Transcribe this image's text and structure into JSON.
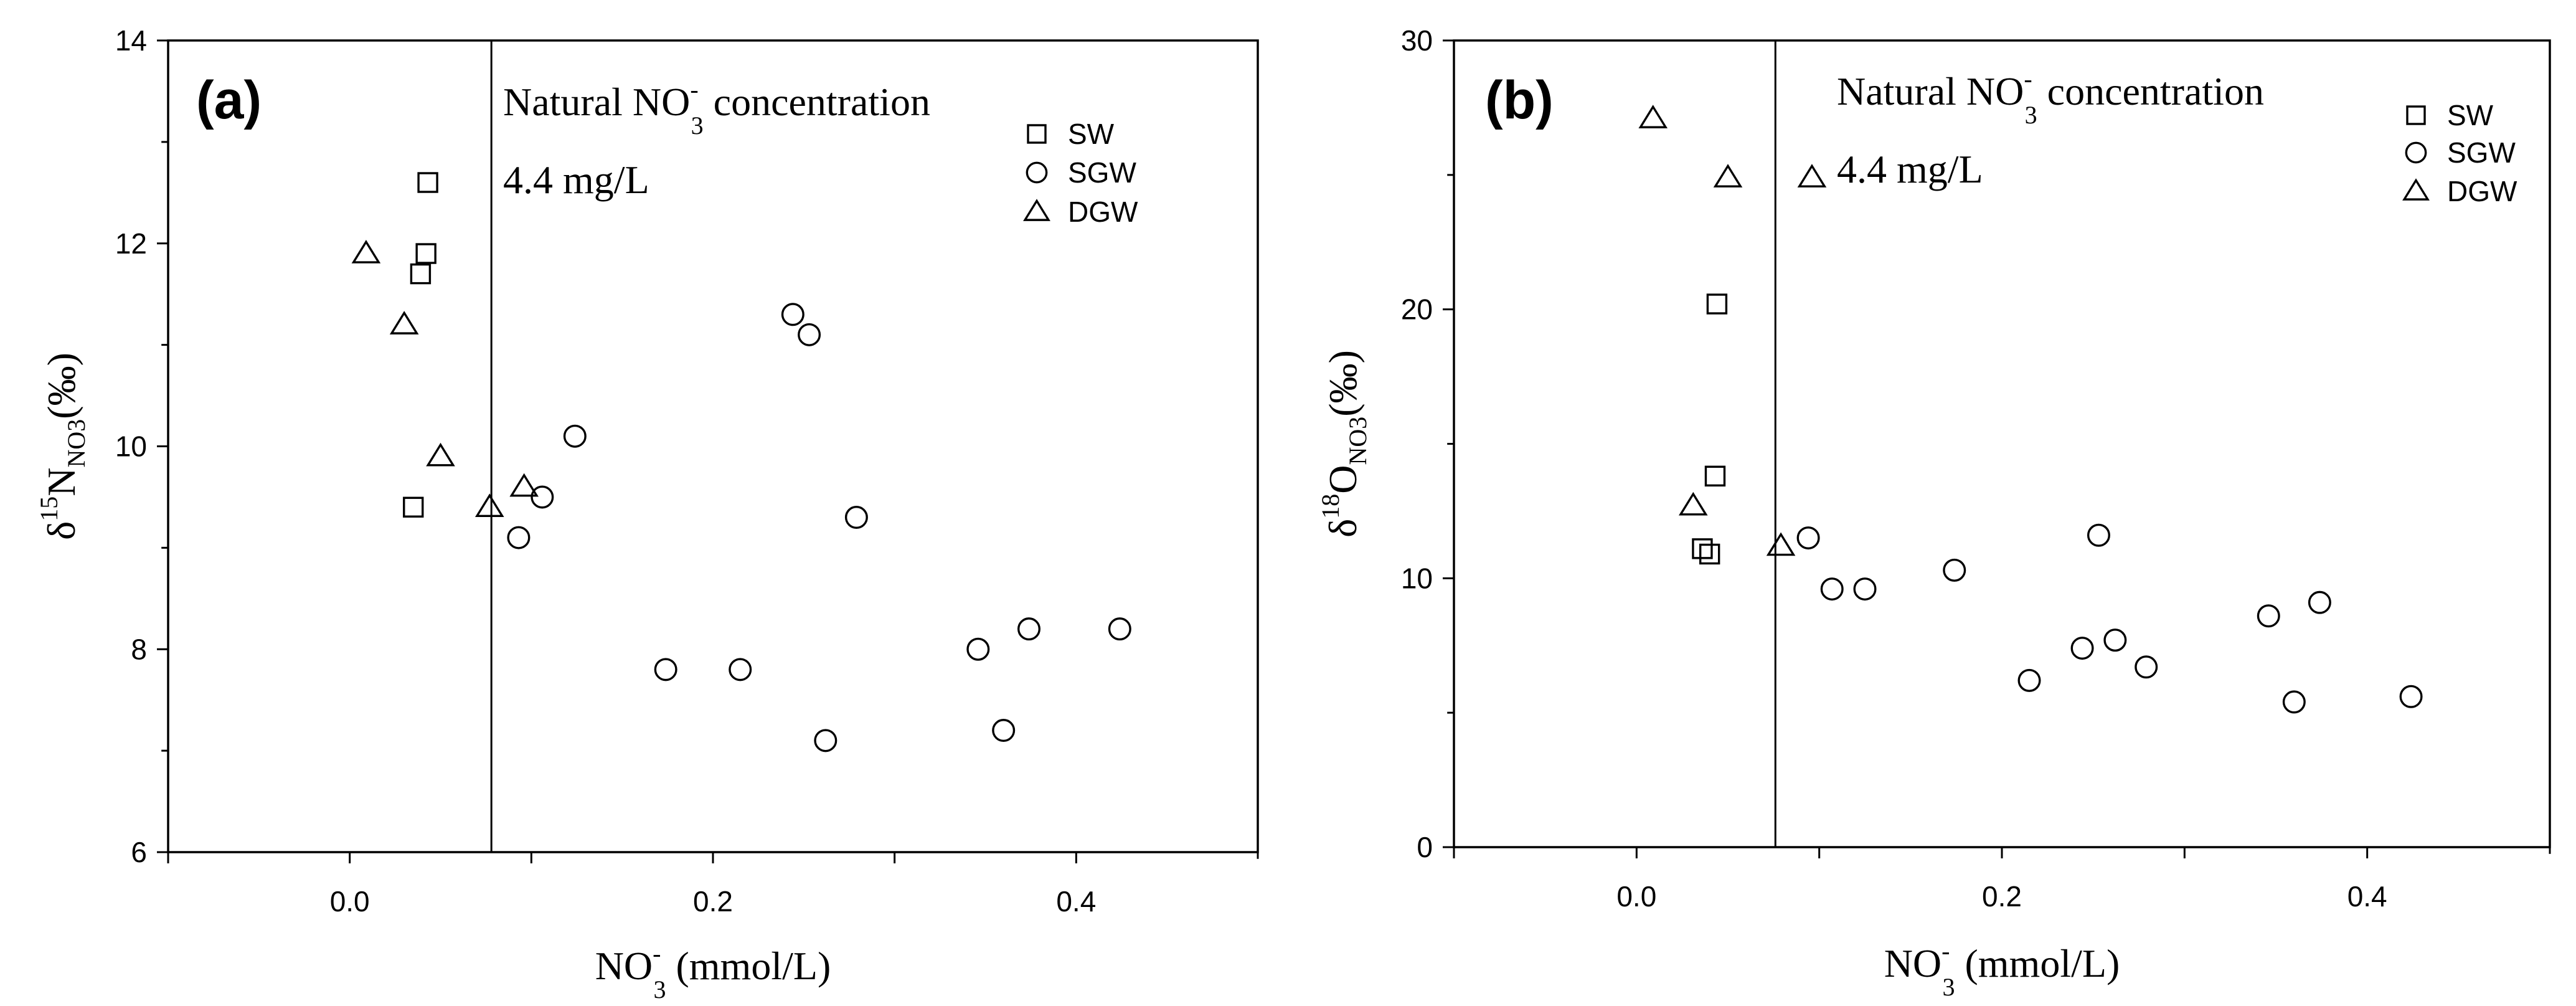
{
  "chart_data": [
    {
      "type": "scatter",
      "panel_label": "(a)",
      "xlim": [
        -0.1,
        0.5
      ],
      "ylim": [
        6,
        14
      ],
      "x_ticks": [
        0.0,
        0.2,
        0.4
      ],
      "x_tick_labels": [
        "0.0",
        "0.2",
        "0.4"
      ],
      "y_ticks": [
        6,
        8,
        10,
        12,
        14
      ],
      "y_tick_labels": [
        "6",
        "8",
        "10",
        "12",
        "14"
      ],
      "xlabel": {
        "main": "NO",
        "sub": "3",
        "sup": "-",
        "tail": " (mmol/L)"
      },
      "ylabel": {
        "prefix": "δ",
        "sup": "15",
        "main": "N",
        "sub": "NO3",
        "tail": "(‰)"
      },
      "vline": {
        "x": 0.078
      },
      "annotation": {
        "line1": {
          "main": "Natural NO",
          "sub": "3",
          "sup": "-",
          "tail": " concentration"
        },
        "line2": "4.4 mg/L"
      },
      "legend_position": "top-right",
      "grid": false,
      "series": [
        {
          "name": "SW",
          "marker": "square",
          "points": [
            [
              0.043,
              12.6
            ],
            [
              0.042,
              11.9
            ],
            [
              0.039,
              11.7
            ],
            [
              0.035,
              9.4
            ]
          ]
        },
        {
          "name": "SGW",
          "marker": "circle",
          "points": [
            [
              0.244,
              11.3
            ],
            [
              0.253,
              11.1
            ],
            [
              0.124,
              10.1
            ],
            [
              0.106,
              9.5
            ],
            [
              0.093,
              9.1
            ],
            [
              0.279,
              9.3
            ],
            [
              0.174,
              7.8
            ],
            [
              0.215,
              7.8
            ],
            [
              0.262,
              7.1
            ],
            [
              0.346,
              8.0
            ],
            [
              0.374,
              8.2
            ],
            [
              0.36,
              7.2
            ],
            [
              0.424,
              8.2
            ]
          ]
        },
        {
          "name": "DGW",
          "marker": "triangle",
          "points": [
            [
              0.009,
              11.9
            ],
            [
              0.03,
              11.2
            ],
            [
              0.05,
              9.9
            ],
            [
              0.077,
              9.4
            ],
            [
              0.096,
              9.6
            ]
          ]
        }
      ]
    },
    {
      "type": "scatter",
      "panel_label": "(b)",
      "xlim": [
        -0.1,
        0.5
      ],
      "ylim": [
        0,
        30
      ],
      "x_ticks": [
        0.0,
        0.2,
        0.4
      ],
      "x_tick_labels": [
        "0.0",
        "0.2",
        "0.4"
      ],
      "y_ticks": [
        0,
        10,
        20,
        30
      ],
      "y_tick_labels": [
        "0",
        "10",
        "20",
        "30"
      ],
      "xlabel": {
        "main": "NO",
        "sub": "3",
        "sup": "-",
        "tail": " (mmol/L)"
      },
      "ylabel": {
        "prefix": "δ",
        "sup": "18",
        "main": "O",
        "sub": "NO3",
        "tail": "(‰)"
      },
      "vline": {
        "x": 0.076
      },
      "annotation": {
        "line1": {
          "main": "Natural NO",
          "sub": "3",
          "sup": "-",
          "tail": " concentration"
        },
        "line2": "4.4 mg/L"
      },
      "legend_position": "top-right",
      "grid": false,
      "series": [
        {
          "name": "SW",
          "marker": "square",
          "points": [
            [
              0.044,
              20.2
            ],
            [
              0.043,
              13.8
            ],
            [
              0.036,
              11.1
            ],
            [
              0.04,
              10.9
            ]
          ]
        },
        {
          "name": "SGW",
          "marker": "circle",
          "points": [
            [
              0.094,
              11.5
            ],
            [
              0.107,
              9.6
            ],
            [
              0.125,
              9.6
            ],
            [
              0.174,
              10.3
            ],
            [
              0.215,
              6.2
            ],
            [
              0.244,
              7.4
            ],
            [
              0.253,
              11.6
            ],
            [
              0.262,
              7.7
            ],
            [
              0.279,
              6.7
            ],
            [
              0.346,
              8.6
            ],
            [
              0.374,
              9.1
            ],
            [
              0.36,
              5.4
            ],
            [
              0.424,
              5.6
            ]
          ]
        },
        {
          "name": "DGW",
          "marker": "triangle",
          "points": [
            [
              0.009,
              27.1
            ],
            [
              0.05,
              24.9
            ],
            [
              0.096,
              24.9
            ],
            [
              0.031,
              12.7
            ],
            [
              0.079,
              11.2
            ]
          ]
        }
      ]
    }
  ]
}
